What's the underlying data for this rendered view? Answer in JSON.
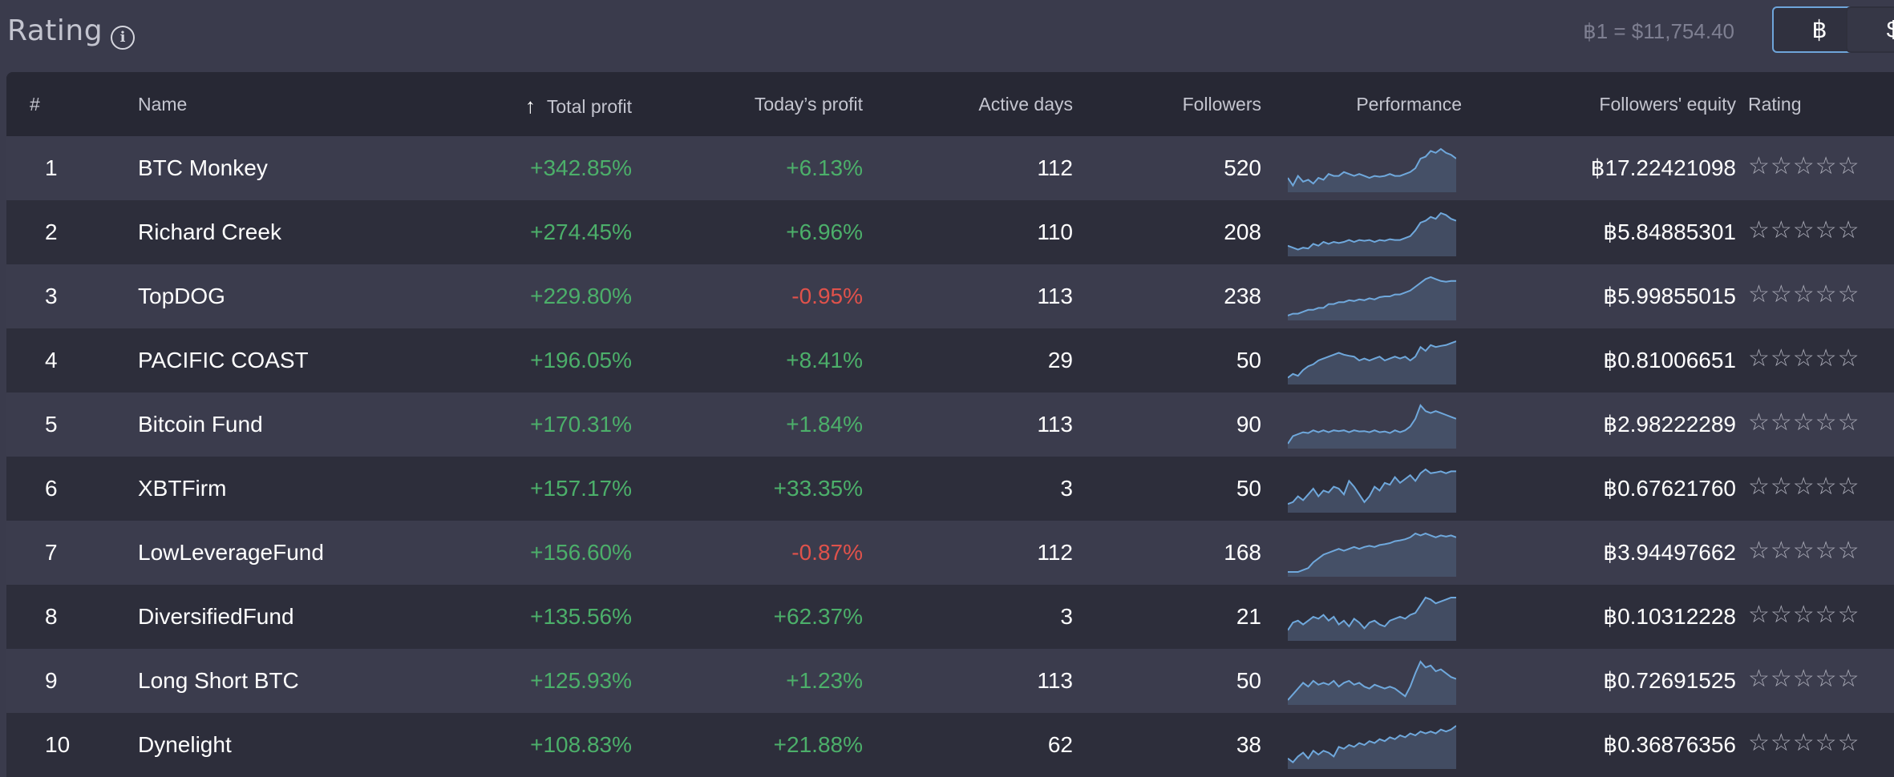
{
  "header": {
    "title": "Rating",
    "info_icon": "info-icon",
    "rate_text": "฿1 = $11,754.40",
    "currency_buttons": [
      {
        "label": "฿",
        "active": true
      },
      {
        "label": "$",
        "active": false
      }
    ]
  },
  "table": {
    "columns": {
      "rank": "#",
      "name": "Name",
      "total_profit": "Total profit",
      "todays_profit": "Today’s profit",
      "active_days": "Active days",
      "followers": "Followers",
      "performance": "Performance",
      "equity": "Followers' equity",
      "rating": "Rating"
    },
    "sort_icon": "arrow-up-icon",
    "rows": [
      {
        "rank": "1",
        "name": "BTC Monkey",
        "total_profit": "+342.85%",
        "todays_profit": "+6.13%",
        "today_positive": true,
        "active_days": "112",
        "followers": "520",
        "equity": "฿17.22421098",
        "stars": "☆☆☆☆☆",
        "performance": [
          0.25,
          0.05,
          0.3,
          0.15,
          0.2,
          0.1,
          0.25,
          0.2,
          0.35,
          0.3,
          0.3,
          0.4,
          0.35,
          0.3,
          0.35,
          0.3,
          0.25,
          0.3,
          0.28,
          0.3,
          0.35,
          0.3,
          0.3,
          0.35,
          0.4,
          0.5,
          0.75,
          0.8,
          0.95,
          0.9,
          1.0,
          0.9,
          0.85,
          0.75
        ]
      },
      {
        "rank": "2",
        "name": "Richard Creek",
        "total_profit": "+274.45%",
        "todays_profit": "+6.96%",
        "today_positive": true,
        "active_days": "110",
        "followers": "208",
        "equity": "฿5.84885301",
        "stars": "☆☆☆☆☆",
        "performance": [
          0.15,
          0.1,
          0.05,
          0.1,
          0.08,
          0.2,
          0.15,
          0.25,
          0.2,
          0.25,
          0.22,
          0.25,
          0.3,
          0.25,
          0.3,
          0.28,
          0.3,
          0.25,
          0.3,
          0.28,
          0.32,
          0.3,
          0.3,
          0.35,
          0.4,
          0.55,
          0.75,
          0.8,
          0.9,
          0.85,
          1.0,
          0.95,
          0.85,
          0.8
        ]
      },
      {
        "rank": "3",
        "name": "TopDOG",
        "total_profit": "+229.80%",
        "todays_profit": "-0.95%",
        "today_positive": false,
        "active_days": "113",
        "followers": "238",
        "equity": "฿5.99855015",
        "stars": "☆☆☆☆☆",
        "performance": [
          0.0,
          0.05,
          0.05,
          0.1,
          0.15,
          0.15,
          0.2,
          0.2,
          0.3,
          0.3,
          0.35,
          0.35,
          0.4,
          0.38,
          0.42,
          0.4,
          0.45,
          0.42,
          0.48,
          0.5,
          0.5,
          0.55,
          0.55,
          0.6,
          0.65,
          0.75,
          0.85,
          0.95,
          1.0,
          0.95,
          0.9,
          0.88,
          0.9,
          0.9
        ]
      },
      {
        "rank": "4",
        "name": "PACIFIC COAST",
        "total_profit": "+196.05%",
        "todays_profit": "+8.41%",
        "today_positive": true,
        "active_days": "29",
        "followers": "50",
        "equity": "฿0.81006651",
        "stars": "☆☆☆☆☆",
        "performance": [
          0.05,
          0.15,
          0.1,
          0.25,
          0.35,
          0.4,
          0.5,
          0.55,
          0.6,
          0.65,
          0.7,
          0.65,
          0.62,
          0.6,
          0.5,
          0.55,
          0.5,
          0.55,
          0.6,
          0.5,
          0.55,
          0.6,
          0.55,
          0.6,
          0.5,
          0.6,
          0.85,
          0.75,
          0.9,
          0.85,
          0.88,
          0.9,
          0.95,
          1.0
        ]
      },
      {
        "rank": "5",
        "name": "Bitcoin Fund",
        "total_profit": "+170.31%",
        "todays_profit": "+1.84%",
        "today_positive": true,
        "active_days": "113",
        "followers": "90",
        "equity": "฿2.98222289",
        "stars": "☆☆☆☆☆",
        "performance": [
          0.0,
          0.2,
          0.25,
          0.3,
          0.28,
          0.35,
          0.3,
          0.35,
          0.3,
          0.35,
          0.33,
          0.35,
          0.3,
          0.35,
          0.32,
          0.33,
          0.3,
          0.35,
          0.3,
          0.32,
          0.28,
          0.35,
          0.3,
          0.35,
          0.45,
          0.65,
          1.0,
          0.85,
          0.8,
          0.85,
          0.8,
          0.75,
          0.7,
          0.65
        ]
      },
      {
        "rank": "6",
        "name": "XBTFirm",
        "total_profit": "+157.17%",
        "todays_profit": "+33.35%",
        "today_positive": true,
        "active_days": "3",
        "followers": "50",
        "equity": "฿0.67621760",
        "stars": "☆☆☆☆☆",
        "performance": [
          0.1,
          0.15,
          0.3,
          0.2,
          0.35,
          0.5,
          0.3,
          0.45,
          0.4,
          0.55,
          0.5,
          0.35,
          0.7,
          0.55,
          0.35,
          0.15,
          0.3,
          0.55,
          0.45,
          0.65,
          0.6,
          0.8,
          0.65,
          0.75,
          0.85,
          0.7,
          0.9,
          1.0,
          0.9,
          0.92,
          0.95,
          0.9,
          0.95,
          0.95
        ]
      },
      {
        "rank": "7",
        "name": "LowLeverageFund",
        "total_profit": "+156.60%",
        "todays_profit": "-0.87%",
        "today_positive": false,
        "active_days": "112",
        "followers": "168",
        "equity": "฿3.94497662",
        "stars": "☆☆☆☆☆",
        "performance": [
          0.0,
          0.0,
          0.0,
          0.05,
          0.1,
          0.25,
          0.35,
          0.45,
          0.5,
          0.55,
          0.6,
          0.55,
          0.6,
          0.65,
          0.6,
          0.65,
          0.68,
          0.65,
          0.7,
          0.72,
          0.75,
          0.8,
          0.82,
          0.85,
          0.9,
          1.0,
          0.95,
          1.0,
          0.95,
          0.9,
          0.95,
          0.92,
          0.95,
          0.9
        ]
      },
      {
        "rank": "8",
        "name": "DiversifiedFund",
        "total_profit": "+135.56%",
        "todays_profit": "+62.37%",
        "today_positive": true,
        "active_days": "3",
        "followers": "21",
        "equity": "฿0.10312228",
        "stars": "☆☆☆☆☆",
        "performance": [
          0.15,
          0.35,
          0.4,
          0.3,
          0.4,
          0.5,
          0.45,
          0.55,
          0.4,
          0.5,
          0.3,
          0.4,
          0.25,
          0.45,
          0.35,
          0.2,
          0.35,
          0.4,
          0.3,
          0.25,
          0.4,
          0.45,
          0.5,
          0.45,
          0.55,
          0.6,
          0.8,
          1.0,
          0.95,
          0.85,
          0.9,
          0.95,
          1.0,
          1.0
        ]
      },
      {
        "rank": "9",
        "name": "Long Short BTC",
        "total_profit": "+125.93%",
        "todays_profit": "+1.23%",
        "today_positive": true,
        "active_days": "113",
        "followers": "50",
        "equity": "฿0.72691525",
        "stars": "☆☆☆☆☆",
        "performance": [
          0.0,
          0.15,
          0.3,
          0.45,
          0.35,
          0.5,
          0.4,
          0.45,
          0.4,
          0.5,
          0.35,
          0.45,
          0.5,
          0.4,
          0.45,
          0.35,
          0.3,
          0.4,
          0.35,
          0.3,
          0.35,
          0.3,
          0.2,
          0.1,
          0.35,
          0.7,
          1.0,
          0.85,
          0.9,
          0.75,
          0.8,
          0.7,
          0.6,
          0.55
        ]
      },
      {
        "rank": "10",
        "name": "Dynelight",
        "total_profit": "+108.83%",
        "todays_profit": "+21.88%",
        "today_positive": true,
        "active_days": "62",
        "followers": "38",
        "equity": "฿0.36876356",
        "stars": "☆☆☆☆☆",
        "performance": [
          0.15,
          0.05,
          0.2,
          0.3,
          0.15,
          0.35,
          0.25,
          0.35,
          0.3,
          0.2,
          0.45,
          0.4,
          0.5,
          0.45,
          0.55,
          0.5,
          0.6,
          0.55,
          0.65,
          0.6,
          0.7,
          0.65,
          0.75,
          0.7,
          0.8,
          0.75,
          0.85,
          0.8,
          0.85,
          0.8,
          0.9,
          0.85,
          0.9,
          1.0
        ]
      }
    ]
  },
  "colors": {
    "positive": "#4caf6a",
    "negative": "#e0524b",
    "spark_line": "#6fa8dc",
    "spark_fill": "#4a5770",
    "active_border": "#6ea5da"
  }
}
